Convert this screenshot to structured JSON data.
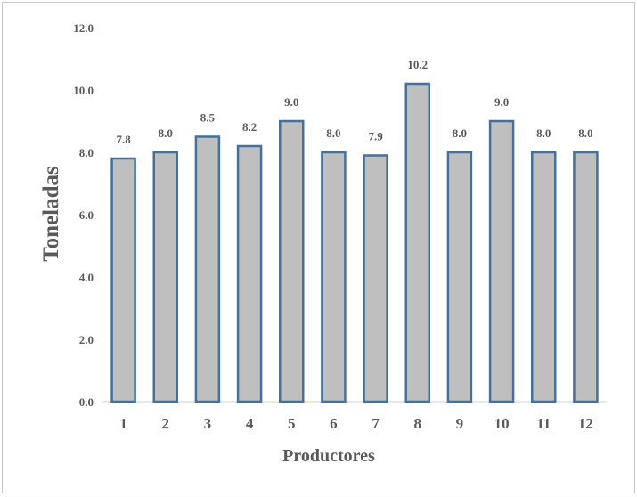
{
  "chart_data": {
    "type": "bar",
    "categories": [
      "1",
      "2",
      "3",
      "4",
      "5",
      "6",
      "7",
      "8",
      "9",
      "10",
      "11",
      "12"
    ],
    "values": [
      7.8,
      8.0,
      8.5,
      8.2,
      9.0,
      8.0,
      7.9,
      10.2,
      8.0,
      9.0,
      8.0,
      8.0
    ],
    "data_labels": [
      "7.8",
      "8.0",
      "8.5",
      "8.2",
      "9.0",
      "8.0",
      "7.9",
      "10.2",
      "8.0",
      "9.0",
      "8.0",
      "8.0"
    ],
    "yticks": [
      "0.0",
      "2.0",
      "4.0",
      "6.0",
      "8.0",
      "10.0",
      "12.0"
    ],
    "ylim": [
      0,
      12
    ],
    "xlabel": "Productores",
    "ylabel": "Toneladas",
    "grid": false,
    "legend": "none",
    "colors": {
      "bar_fill": "#bfbfbf",
      "bar_outline": "#41719c",
      "text": "#595959"
    }
  }
}
